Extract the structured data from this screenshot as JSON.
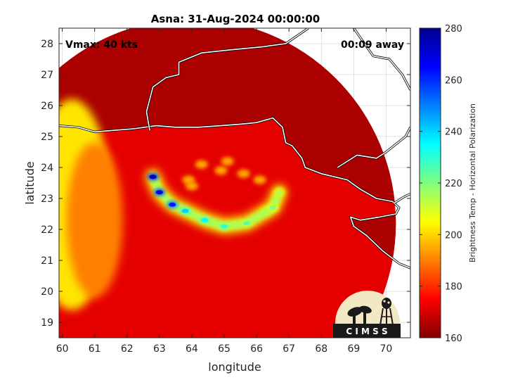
{
  "chart_data": {
    "type": "heatmap",
    "title": "Asna: 31-Aug-2024 00:00:00",
    "xlabel": "longitude",
    "ylabel": "latitude",
    "xlim": [
      59.9,
      70.75
    ],
    "ylim": [
      18.5,
      28.5
    ],
    "xticks": [
      60,
      61,
      62,
      63,
      64,
      65,
      66,
      67,
      68,
      69,
      70
    ],
    "yticks": [
      19,
      20,
      21,
      22,
      23,
      24,
      25,
      26,
      27,
      28
    ],
    "grid": true,
    "annotations": {
      "vmax": "Vmax: 40 kts",
      "time_offset": "00:09 away"
    },
    "swath": {
      "center_lon": 64.0,
      "center_lat": 22.2,
      "radius_deg": 6.3
    },
    "storm": {
      "eye_lon": 65.0,
      "eye_lat": 23.0,
      "coldest_band": [
        {
          "lon": 62.8,
          "lat": 23.7,
          "tb": 168
        },
        {
          "lon": 63.0,
          "lat": 23.2,
          "tb": 172
        },
        {
          "lon": 63.4,
          "lat": 22.8,
          "tb": 178
        },
        {
          "lon": 63.8,
          "lat": 22.6,
          "tb": 200
        },
        {
          "lon": 64.4,
          "lat": 22.3,
          "tb": 205
        },
        {
          "lon": 65.0,
          "lat": 22.1,
          "tb": 210
        },
        {
          "lon": 65.7,
          "lat": 22.2,
          "tb": 215
        },
        {
          "lon": 66.5,
          "lat": 22.7,
          "tb": 220
        },
        {
          "lon": 66.7,
          "lat": 23.2,
          "tb": 225
        }
      ],
      "west_edge_tb": 238,
      "background_tb": 268,
      "land_tb": 275
    },
    "coastline": [
      [
        [
          59.9,
          25.35
        ],
        [
          60.5,
          25.3
        ],
        [
          61.0,
          25.15
        ],
        [
          61.6,
          25.2
        ],
        [
          62.2,
          25.25
        ],
        [
          62.9,
          25.35
        ],
        [
          63.5,
          25.3
        ],
        [
          64.2,
          25.3
        ],
        [
          64.9,
          25.35
        ],
        [
          65.5,
          25.4
        ],
        [
          66.0,
          25.45
        ],
        [
          66.5,
          25.6
        ],
        [
          66.8,
          25.3
        ],
        [
          66.9,
          24.8
        ],
        [
          67.1,
          24.7
        ],
        [
          67.4,
          24.3
        ],
        [
          67.5,
          24.0
        ],
        [
          68.0,
          23.8
        ],
        [
          68.4,
          23.7
        ],
        [
          68.8,
          23.6
        ],
        [
          69.2,
          23.3
        ],
        [
          69.7,
          23.0
        ],
        [
          70.2,
          22.9
        ],
        [
          70.4,
          22.7
        ],
        [
          70.3,
          22.5
        ],
        [
          69.8,
          22.4
        ],
        [
          69.2,
          22.3
        ],
        [
          68.9,
          22.4
        ],
        [
          69.0,
          22.1
        ],
        [
          69.4,
          21.8
        ],
        [
          69.9,
          21.3
        ],
        [
          70.4,
          20.9
        ],
        [
          70.75,
          20.75
        ]
      ],
      [
        [
          70.25,
          22.85
        ],
        [
          70.55,
          23.05
        ],
        [
          70.75,
          23.15
        ]
      ]
    ],
    "borders": [
      [
        [
          62.7,
          25.2
        ],
        [
          62.6,
          25.8
        ],
        [
          62.8,
          26.6
        ],
        [
          63.2,
          26.9
        ],
        [
          63.6,
          27.0
        ],
        [
          63.6,
          27.4
        ],
        [
          64.3,
          27.7
        ],
        [
          65.2,
          27.8
        ],
        [
          66.2,
          27.9
        ],
        [
          66.9,
          28.0
        ],
        [
          67.6,
          28.5
        ]
      ],
      [
        [
          68.5,
          24.0
        ],
        [
          69.1,
          24.4
        ],
        [
          69.7,
          24.3
        ],
        [
          70.0,
          24.5
        ],
        [
          70.6,
          25.0
        ],
        [
          70.75,
          25.3
        ]
      ],
      [
        [
          69.0,
          28.5
        ],
        [
          69.6,
          27.6
        ],
        [
          70.1,
          27.5
        ],
        [
          70.5,
          27.0
        ],
        [
          70.75,
          26.5
        ]
      ]
    ],
    "colorbar": {
      "label": "Brightness Temp - Horizontal Polarization",
      "min": 160,
      "max": 280,
      "ticks": [
        160,
        180,
        200,
        220,
        240,
        260,
        280
      ],
      "colormap": "jet"
    },
    "logo": {
      "text": "C I M S S"
    }
  }
}
